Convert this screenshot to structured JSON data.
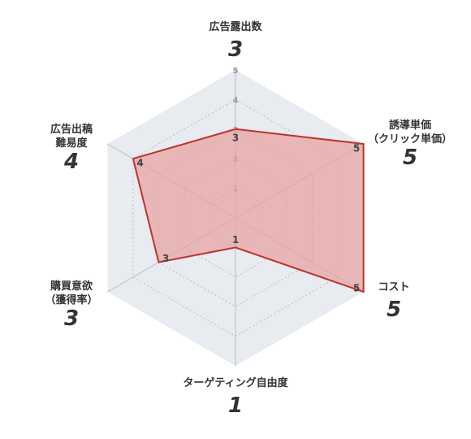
{
  "chart_data": {
    "type": "radar",
    "max": 5,
    "ticks": [
      "1",
      "2",
      "3",
      "4",
      "5"
    ],
    "axes": [
      {
        "lines": [
          "広告露出数"
        ],
        "value": 3
      },
      {
        "lines": [
          "誘導単価",
          "（クリック単価）"
        ],
        "value": 5
      },
      {
        "lines": [
          "コスト"
        ],
        "value": 5
      },
      {
        "lines": [
          "ターゲティング自由度"
        ],
        "value": 1
      },
      {
        "lines": [
          "購買意欲",
          "（獲得率）"
        ],
        "value": 3
      },
      {
        "lines": [
          "広告出稿",
          "難易度"
        ],
        "value": 4
      }
    ],
    "colors": {
      "background_hex": "#e8ebef",
      "grid": "#b8bcc2",
      "line": "#c0312b",
      "fill": "#e8a0a0"
    }
  }
}
